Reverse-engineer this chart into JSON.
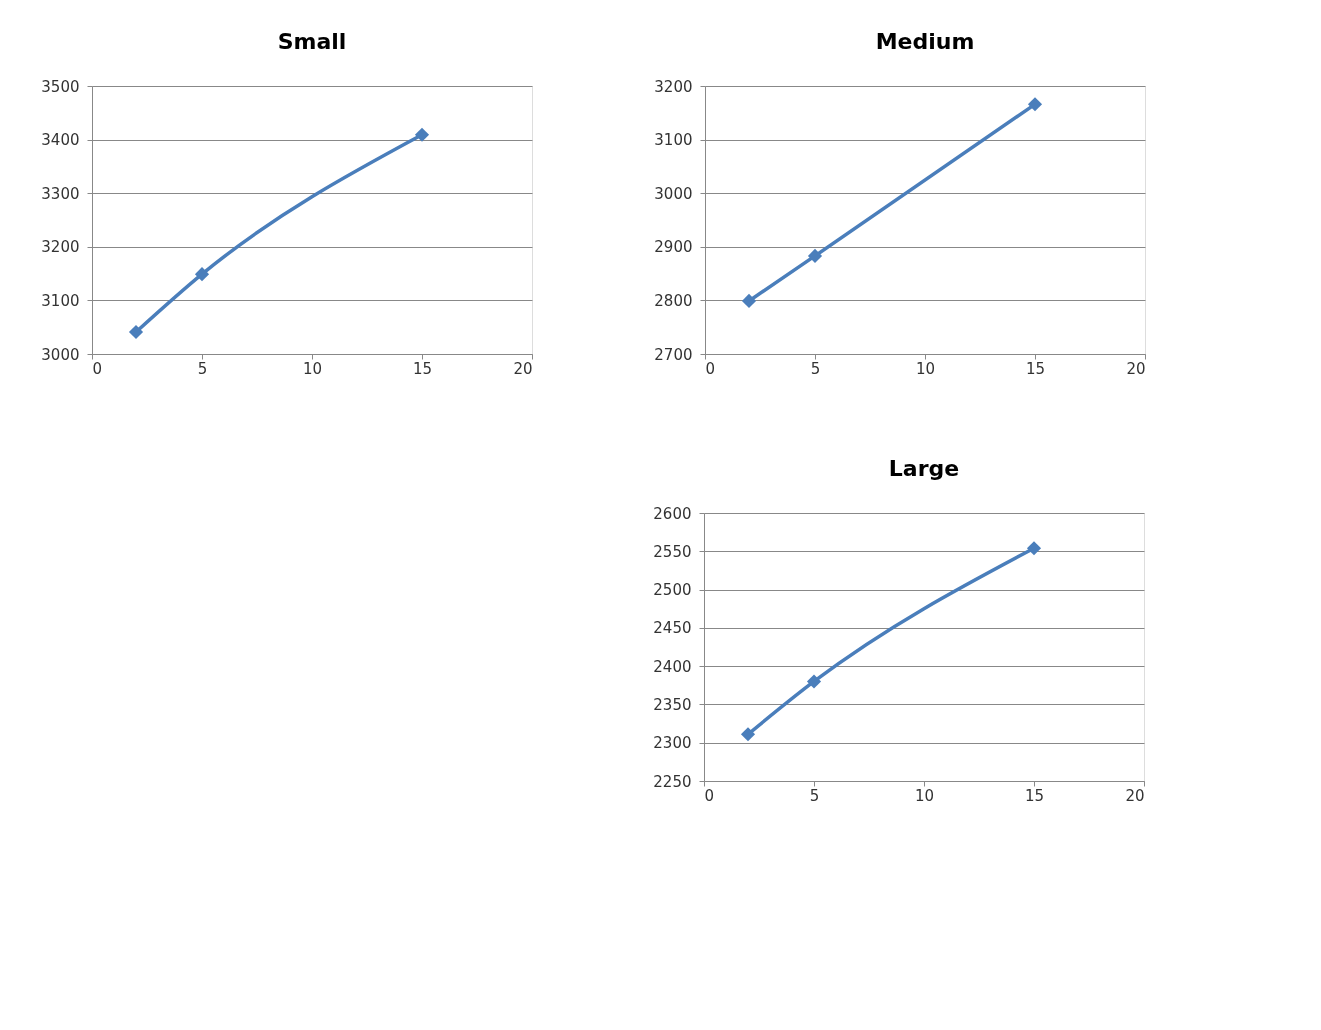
{
  "chart_data": [
    {
      "type": "line",
      "title": "Small",
      "x": [
        2,
        5,
        15
      ],
      "series": [
        {
          "color": "#4a7ebb",
          "values": [
            3041,
            3149,
            3409
          ]
        }
      ],
      "xlim": [
        0,
        20
      ],
      "xticks": [
        0,
        5,
        10,
        15,
        20
      ],
      "ylim": [
        3000,
        3500
      ],
      "yticks": [
        3000,
        3100,
        3200,
        3300,
        3400,
        3500
      ],
      "grid": "y",
      "marker": "diamond",
      "line_style": "solid"
    },
    {
      "type": "line",
      "title": "Medium",
      "x": [
        2,
        5,
        15
      ],
      "series": [
        {
          "color": "#4a7ebb",
          "values": [
            2799,
            2883,
            3166
          ]
        }
      ],
      "xlim": [
        0,
        20
      ],
      "xticks": [
        0,
        5,
        10,
        15,
        20
      ],
      "ylim": [
        2700,
        3200
      ],
      "yticks": [
        2700,
        2800,
        2900,
        3000,
        3100,
        3200
      ],
      "grid": "y",
      "marker": "diamond",
      "line_style": "solid"
    },
    {
      "type": "line",
      "title": "Large",
      "x": [
        2,
        5,
        15
      ],
      "series": [
        {
          "color": "#4a7ebb",
          "values": [
            2311,
            2380,
            2554
          ]
        }
      ],
      "xlim": [
        0,
        20
      ],
      "xticks": [
        0,
        5,
        10,
        15,
        20
      ],
      "ylim": [
        2250,
        2600
      ],
      "yticks": [
        2250,
        2300,
        2350,
        2400,
        2450,
        2500,
        2550,
        2600
      ],
      "grid": "y",
      "marker": "diamond",
      "line_style": "solid"
    }
  ]
}
